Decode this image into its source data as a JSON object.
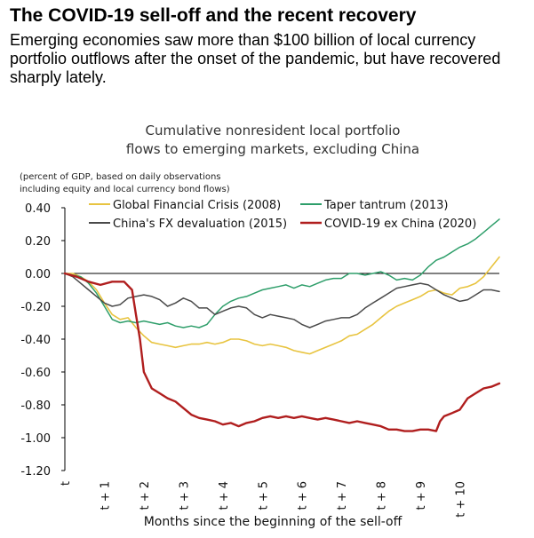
{
  "page": {
    "headline": "The COVID-19 sell-off and the recent recovery",
    "subtitle": "Emerging economies saw more than $100 billion of local currency portfolio outflows after the onset of the pandemic, but have recovered sharply lately."
  },
  "chart_data": {
    "type": "line",
    "title_lines": [
      "Cumulative nonresident local portfolio",
      "flows to emerging markets, excluding China"
    ],
    "unit_note_lines": [
      "(percent of GDP, based on daily observations",
      "including equity and local currency bond flows)"
    ],
    "xlabel": "Months since the beginning of the sell-off",
    "x_ticks": [
      "t",
      "t + 1",
      "t + 2",
      "t + 3",
      "t + 4",
      "t + 5",
      "t + 6",
      "t + 7",
      "t + 8",
      "t + 9",
      "t + 10"
    ],
    "ylim": [
      -1.2,
      0.4
    ],
    "y_ticks": [
      "0.40",
      "0.20",
      "0.00",
      "-0.20",
      "-0.40",
      "-0.60",
      "-0.80",
      "-1.00",
      "-1.20"
    ],
    "zero_line": true,
    "legend": "top",
    "series": [
      {
        "name": "Global Financial Crisis (2008)",
        "color": "#e8c440",
        "width": 1.6,
        "points": [
          [
            0,
            0
          ],
          [
            0.2,
            0
          ],
          [
            0.4,
            -0.02
          ],
          [
            0.6,
            -0.05
          ],
          [
            0.8,
            -0.1
          ],
          [
            1.0,
            -0.18
          ],
          [
            1.2,
            -0.25
          ],
          [
            1.4,
            -0.28
          ],
          [
            1.6,
            -0.27
          ],
          [
            1.8,
            -0.33
          ],
          [
            2.0,
            -0.38
          ],
          [
            2.2,
            -0.42
          ],
          [
            2.4,
            -0.43
          ],
          [
            2.6,
            -0.44
          ],
          [
            2.8,
            -0.45
          ],
          [
            3.0,
            -0.44
          ],
          [
            3.2,
            -0.43
          ],
          [
            3.4,
            -0.43
          ],
          [
            3.6,
            -0.42
          ],
          [
            3.8,
            -0.43
          ],
          [
            4.0,
            -0.42
          ],
          [
            4.2,
            -0.4
          ],
          [
            4.4,
            -0.4
          ],
          [
            4.6,
            -0.41
          ],
          [
            4.8,
            -0.43
          ],
          [
            5.0,
            -0.44
          ],
          [
            5.2,
            -0.43
          ],
          [
            5.4,
            -0.44
          ],
          [
            5.6,
            -0.45
          ],
          [
            5.8,
            -0.47
          ],
          [
            6.0,
            -0.48
          ],
          [
            6.2,
            -0.49
          ],
          [
            6.4,
            -0.47
          ],
          [
            6.6,
            -0.45
          ],
          [
            6.8,
            -0.43
          ],
          [
            7.0,
            -0.41
          ],
          [
            7.2,
            -0.38
          ],
          [
            7.4,
            -0.37
          ],
          [
            7.6,
            -0.34
          ],
          [
            7.8,
            -0.31
          ],
          [
            8.0,
            -0.27
          ],
          [
            8.2,
            -0.23
          ],
          [
            8.4,
            -0.2
          ],
          [
            8.6,
            -0.18
          ],
          [
            8.8,
            -0.16
          ],
          [
            9.0,
            -0.14
          ],
          [
            9.2,
            -0.11
          ],
          [
            9.4,
            -0.1
          ],
          [
            9.6,
            -0.12
          ],
          [
            9.8,
            -0.13
          ],
          [
            10.0,
            -0.09
          ],
          [
            10.2,
            -0.08
          ],
          [
            10.4,
            -0.06
          ],
          [
            10.6,
            -0.02
          ],
          [
            10.8,
            0.04
          ],
          [
            11.0,
            0.1
          ]
        ]
      },
      {
        "name": "Taper tantrum (2013)",
        "color": "#2e9e6a",
        "width": 1.5,
        "points": [
          [
            0,
            0
          ],
          [
            0.2,
            -0.01
          ],
          [
            0.4,
            -0.02
          ],
          [
            0.6,
            -0.06
          ],
          [
            0.8,
            -0.12
          ],
          [
            1.0,
            -0.2
          ],
          [
            1.2,
            -0.28
          ],
          [
            1.4,
            -0.3
          ],
          [
            1.6,
            -0.29
          ],
          [
            1.8,
            -0.3
          ],
          [
            2.0,
            -0.29
          ],
          [
            2.2,
            -0.3
          ],
          [
            2.4,
            -0.31
          ],
          [
            2.6,
            -0.3
          ],
          [
            2.8,
            -0.32
          ],
          [
            3.0,
            -0.33
          ],
          [
            3.2,
            -0.32
          ],
          [
            3.4,
            -0.33
          ],
          [
            3.6,
            -0.31
          ],
          [
            3.8,
            -0.25
          ],
          [
            4.0,
            -0.2
          ],
          [
            4.2,
            -0.17
          ],
          [
            4.4,
            -0.15
          ],
          [
            4.6,
            -0.14
          ],
          [
            4.8,
            -0.12
          ],
          [
            5.0,
            -0.1
          ],
          [
            5.2,
            -0.09
          ],
          [
            5.4,
            -0.08
          ],
          [
            5.6,
            -0.07
          ],
          [
            5.8,
            -0.09
          ],
          [
            6.0,
            -0.07
          ],
          [
            6.2,
            -0.08
          ],
          [
            6.4,
            -0.06
          ],
          [
            6.6,
            -0.04
          ],
          [
            6.8,
            -0.03
          ],
          [
            7.0,
            -0.03
          ],
          [
            7.2,
            0
          ],
          [
            7.4,
            0
          ],
          [
            7.6,
            -0.01
          ],
          [
            7.8,
            0
          ],
          [
            8.0,
            0.01
          ],
          [
            8.2,
            -0.01
          ],
          [
            8.4,
            -0.04
          ],
          [
            8.6,
            -0.03
          ],
          [
            8.8,
            -0.04
          ],
          [
            9.0,
            -0.01
          ],
          [
            9.2,
            0.04
          ],
          [
            9.4,
            0.08
          ],
          [
            9.6,
            0.1
          ],
          [
            9.8,
            0.13
          ],
          [
            10.0,
            0.16
          ],
          [
            10.2,
            0.18
          ],
          [
            10.4,
            0.21
          ],
          [
            10.6,
            0.25
          ],
          [
            10.8,
            0.29
          ],
          [
            11.0,
            0.33
          ]
        ]
      },
      {
        "name": "China's FX devaluation (2015)",
        "color": "#4a4a4a",
        "width": 1.5,
        "points": [
          [
            0,
            0
          ],
          [
            0.2,
            -0.02
          ],
          [
            0.4,
            -0.06
          ],
          [
            0.6,
            -0.1
          ],
          [
            0.8,
            -0.14
          ],
          [
            1.0,
            -0.18
          ],
          [
            1.2,
            -0.2
          ],
          [
            1.4,
            -0.19
          ],
          [
            1.6,
            -0.15
          ],
          [
            1.8,
            -0.14
          ],
          [
            2.0,
            -0.13
          ],
          [
            2.2,
            -0.14
          ],
          [
            2.4,
            -0.16
          ],
          [
            2.6,
            -0.2
          ],
          [
            2.8,
            -0.18
          ],
          [
            3.0,
            -0.15
          ],
          [
            3.2,
            -0.17
          ],
          [
            3.4,
            -0.21
          ],
          [
            3.6,
            -0.21
          ],
          [
            3.8,
            -0.25
          ],
          [
            4.0,
            -0.23
          ],
          [
            4.2,
            -0.21
          ],
          [
            4.4,
            -0.2
          ],
          [
            4.6,
            -0.21
          ],
          [
            4.8,
            -0.25
          ],
          [
            5.0,
            -0.27
          ],
          [
            5.2,
            -0.25
          ],
          [
            5.4,
            -0.26
          ],
          [
            5.6,
            -0.27
          ],
          [
            5.8,
            -0.28
          ],
          [
            6.0,
            -0.31
          ],
          [
            6.2,
            -0.33
          ],
          [
            6.4,
            -0.31
          ],
          [
            6.6,
            -0.29
          ],
          [
            6.8,
            -0.28
          ],
          [
            7.0,
            -0.27
          ],
          [
            7.2,
            -0.27
          ],
          [
            7.4,
            -0.25
          ],
          [
            7.6,
            -0.21
          ],
          [
            7.8,
            -0.18
          ],
          [
            8.0,
            -0.15
          ],
          [
            8.2,
            -0.12
          ],
          [
            8.4,
            -0.09
          ],
          [
            8.6,
            -0.08
          ],
          [
            8.8,
            -0.07
          ],
          [
            9.0,
            -0.06
          ],
          [
            9.2,
            -0.07
          ],
          [
            9.4,
            -0.1
          ],
          [
            9.6,
            -0.13
          ],
          [
            9.8,
            -0.15
          ],
          [
            10.0,
            -0.17
          ],
          [
            10.2,
            -0.16
          ],
          [
            10.4,
            -0.13
          ],
          [
            10.6,
            -0.1
          ],
          [
            10.8,
            -0.1
          ],
          [
            11.0,
            -0.11
          ]
        ]
      },
      {
        "name": "COVID-19 ex China (2020)",
        "color": "#b01e1e",
        "width": 2.4,
        "points": [
          [
            0,
            0
          ],
          [
            0.3,
            -0.02
          ],
          [
            0.6,
            -0.05
          ],
          [
            0.9,
            -0.07
          ],
          [
            1.2,
            -0.05
          ],
          [
            1.5,
            -0.05
          ],
          [
            1.7,
            -0.1
          ],
          [
            1.8,
            -0.25
          ],
          [
            1.9,
            -0.4
          ],
          [
            2.0,
            -0.6
          ],
          [
            2.2,
            -0.7
          ],
          [
            2.4,
            -0.73
          ],
          [
            2.6,
            -0.76
          ],
          [
            2.8,
            -0.78
          ],
          [
            3.0,
            -0.82
          ],
          [
            3.2,
            -0.86
          ],
          [
            3.4,
            -0.88
          ],
          [
            3.6,
            -0.89
          ],
          [
            3.8,
            -0.9
          ],
          [
            4.0,
            -0.92
          ],
          [
            4.2,
            -0.91
          ],
          [
            4.4,
            -0.93
          ],
          [
            4.6,
            -0.91
          ],
          [
            4.8,
            -0.9
          ],
          [
            5.0,
            -0.88
          ],
          [
            5.2,
            -0.87
          ],
          [
            5.4,
            -0.88
          ],
          [
            5.6,
            -0.87
          ],
          [
            5.8,
            -0.88
          ],
          [
            6.0,
            -0.87
          ],
          [
            6.2,
            -0.88
          ],
          [
            6.4,
            -0.89
          ],
          [
            6.6,
            -0.88
          ],
          [
            6.8,
            -0.89
          ],
          [
            7.0,
            -0.9
          ],
          [
            7.2,
            -0.91
          ],
          [
            7.4,
            -0.9
          ],
          [
            7.6,
            -0.91
          ],
          [
            7.8,
            -0.92
          ],
          [
            8.0,
            -0.93
          ],
          [
            8.2,
            -0.95
          ],
          [
            8.4,
            -0.95
          ],
          [
            8.6,
            -0.96
          ],
          [
            8.8,
            -0.96
          ],
          [
            9.0,
            -0.95
          ],
          [
            9.2,
            -0.95
          ],
          [
            9.4,
            -0.96
          ],
          [
            9.5,
            -0.9
          ],
          [
            9.6,
            -0.87
          ],
          [
            9.8,
            -0.85
          ],
          [
            10.0,
            -0.83
          ],
          [
            10.2,
            -0.76
          ],
          [
            10.4,
            -0.73
          ],
          [
            10.6,
            -0.7
          ],
          [
            10.8,
            -0.69
          ],
          [
            11.0,
            -0.67
          ]
        ]
      }
    ]
  }
}
